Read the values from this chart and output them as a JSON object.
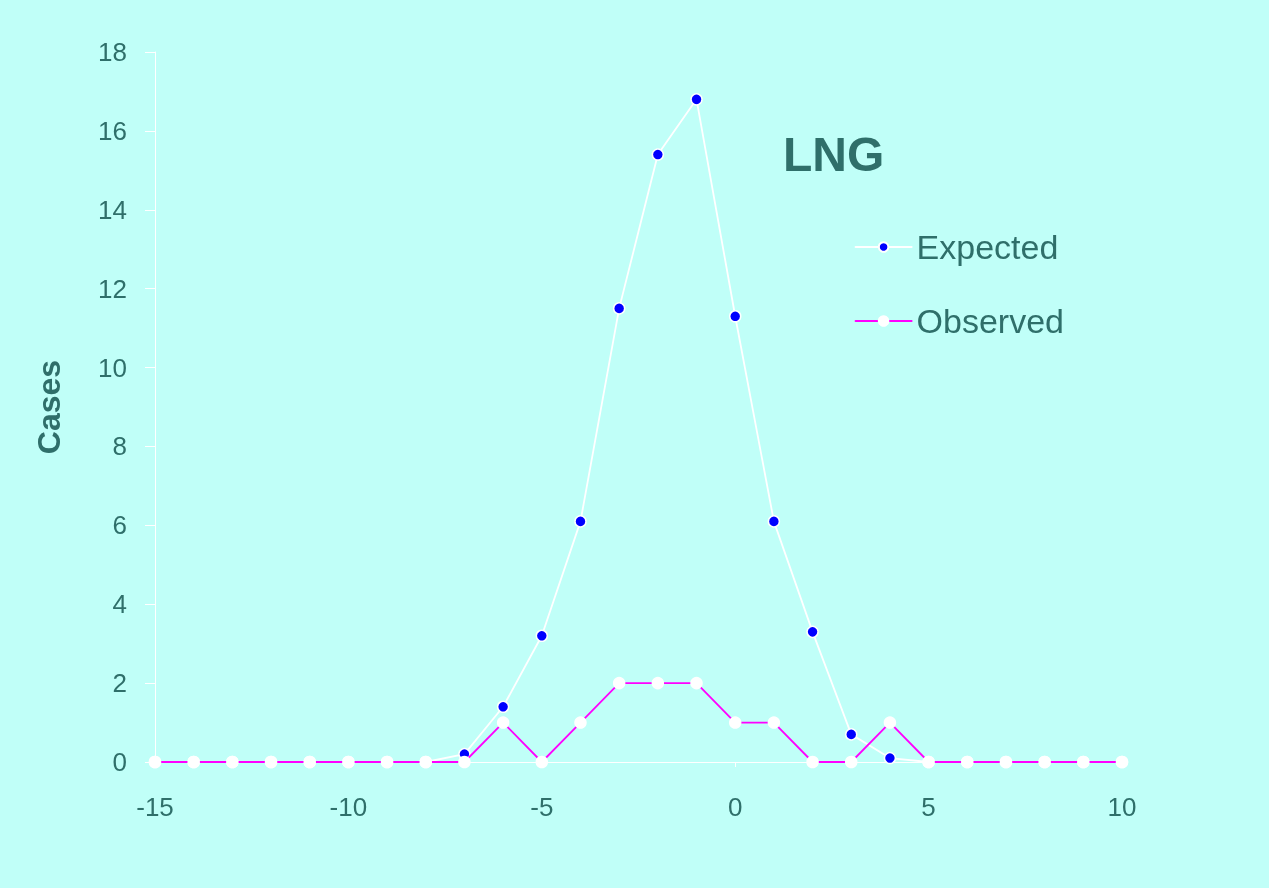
{
  "chart_data": {
    "type": "line",
    "title": "LNG",
    "ylabel": "Cases",
    "x": [
      -15,
      -14,
      -13,
      -12,
      -11,
      -10,
      -9,
      -8,
      -7,
      -6,
      -5,
      -4,
      -3,
      -2,
      -1,
      0,
      1,
      2,
      3,
      4,
      5,
      6,
      7,
      8,
      9,
      10
    ],
    "series": [
      {
        "name": "Expected",
        "color": "#ffffff",
        "values": [
          0,
          0,
          0,
          0,
          0,
          0,
          0,
          0,
          0.2,
          1.4,
          3.2,
          6.1,
          11.5,
          15.4,
          16.8,
          11.3,
          6.1,
          3.3,
          0.7,
          0.1,
          0,
          0,
          0,
          0,
          0,
          0
        ]
      },
      {
        "name": "Observed",
        "color": "#ff00ff",
        "values": [
          0,
          0,
          0,
          0,
          0,
          0,
          0,
          0,
          0,
          1,
          0,
          1,
          2,
          2,
          2,
          1,
          1,
          0,
          0,
          1,
          0,
          0,
          0,
          0,
          0,
          0
        ]
      }
    ],
    "xlim": [
      -15,
      10
    ],
    "xticks": [
      -15,
      -10,
      -5,
      0,
      5,
      10
    ],
    "ylim": [
      0,
      18
    ],
    "yticks": [
      0,
      2,
      4,
      6,
      8,
      10,
      12,
      14,
      16,
      18
    ],
    "legend": "top right",
    "marker": "circle",
    "line_style": "solid"
  }
}
